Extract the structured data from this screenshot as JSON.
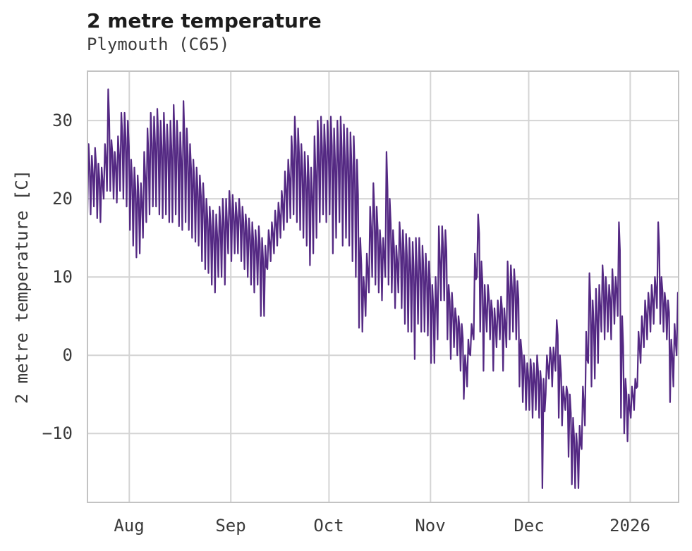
{
  "header": {
    "title": "2 metre temperature",
    "subtitle": "Plymouth (C65)"
  },
  "chart_data": {
    "type": "line",
    "title": "2 metre temperature",
    "subtitle": "Plymouth (C65)",
    "xlabel": "",
    "ylabel": "2 metre temperature [C]",
    "grid": true,
    "legend": "none",
    "series_name": "2 metre temperature",
    "x_unit": "day index across plotted range",
    "xlim": [
      0,
      181
    ],
    "ylim": [
      -18.9,
      36.4
    ],
    "x_ticks": [
      {
        "day": 13,
        "label": "Aug"
      },
      {
        "day": 44,
        "label": "Sep"
      },
      {
        "day": 74,
        "label": "Oct"
      },
      {
        "day": 105,
        "label": "Nov"
      },
      {
        "day": 135,
        "label": "Dec"
      },
      {
        "day": 166,
        "label": "2026"
      }
    ],
    "y_ticks": [
      {
        "value": 30,
        "label": "30"
      },
      {
        "value": 20,
        "label": "20"
      },
      {
        "value": 10,
        "label": "10"
      },
      {
        "value": 0,
        "label": "0"
      },
      {
        "value": -10,
        "label": "−10"
      }
    ],
    "daily_min": [
      17.5,
      18,
      19,
      17.5,
      17,
      20,
      21,
      21,
      20,
      19.5,
      21,
      20,
      19,
      16,
      14,
      12.5,
      13,
      15,
      17,
      18,
      19,
      19,
      18,
      17.5,
      18,
      17,
      17,
      18,
      16.5,
      16,
      17,
      16,
      15,
      14.5,
      14,
      12,
      11,
      10.5,
      9,
      8,
      10,
      10,
      9,
      13,
      12,
      13,
      13,
      12,
      11,
      10,
      9,
      8,
      9,
      5,
      5,
      11,
      12,
      13,
      14,
      15,
      16,
      17,
      17.5,
      18,
      17,
      16,
      15,
      14,
      11.5,
      13,
      15,
      17,
      18,
      17,
      18,
      13,
      15,
      17,
      14,
      15,
      14,
      12,
      10,
      3.5,
      3,
      5,
      8,
      10,
      9,
      8,
      7,
      10,
      9,
      8,
      6,
      8,
      6,
      4,
      3,
      3,
      -0.5,
      4,
      3,
      3,
      2.5,
      -1,
      -1,
      2,
      7,
      7,
      2,
      -0.5,
      1,
      0,
      -2,
      -5.6,
      -4,
      0,
      2,
      10,
      3,
      -2,
      3,
      2,
      -2,
      1,
      2,
      -2,
      1,
      2,
      3,
      2,
      -4,
      -6,
      -7,
      -7,
      -8,
      -7,
      -8,
      -17,
      -5,
      -3,
      -4,
      -2,
      -8,
      -9,
      -7,
      -13,
      -16.5,
      -17,
      -17,
      -12,
      -9,
      -1,
      -4,
      -3,
      -1,
      3,
      2,
      3,
      2,
      4,
      5,
      -8,
      -10,
      -11,
      -8,
      -7,
      -4,
      -1,
      1,
      2,
      3,
      4,
      6,
      4,
      3,
      2,
      -6,
      -4,
      0,
      -5.5
    ],
    "daily_max": [
      27,
      25.5,
      26.5,
      24.5,
      24,
      27,
      34,
      27.5,
      26,
      28,
      31,
      31,
      30,
      25,
      24,
      23,
      22,
      26,
      29,
      31,
      30.5,
      31.5,
      30,
      31,
      29.5,
      30,
      32,
      30,
      28.5,
      32.5,
      29,
      27,
      25,
      24,
      23,
      22,
      20,
      19,
      18.5,
      18,
      19,
      20,
      20,
      21,
      20.5,
      19.5,
      20,
      19,
      18,
      17.5,
      17,
      16,
      16.5,
      15,
      14,
      16,
      17,
      18.5,
      19.5,
      21,
      23.5,
      25,
      28,
      30.5,
      29,
      27,
      26,
      25.5,
      24,
      28,
      30,
      30.5,
      29.5,
      30,
      30.5,
      29,
      30,
      30.5,
      29.5,
      29,
      28.5,
      28,
      25,
      15,
      10,
      13,
      19,
      22,
      19,
      16,
      15,
      26,
      20,
      16,
      14,
      17,
      16,
      15.5,
      15,
      14.5,
      15,
      15,
      14,
      13,
      12,
      9,
      10,
      16.5,
      16.5,
      16,
      9,
      8,
      6,
      5,
      4,
      0,
      2,
      4,
      13,
      18,
      12,
      9,
      9,
      7,
      6,
      7,
      7.5,
      6,
      12,
      11.5,
      11,
      9.5,
      2,
      0,
      -1,
      -0.5,
      -1,
      0,
      -2,
      -3,
      0,
      1,
      1,
      4.5,
      0,
      -4,
      -4,
      -5,
      -8,
      -10,
      -9,
      -4,
      3,
      10.5,
      7,
      8.5,
      9,
      11.5,
      10,
      9,
      11,
      10,
      17,
      5,
      -3,
      -5,
      -4,
      -3,
      3,
      5,
      7,
      8,
      9,
      10,
      17,
      10,
      8,
      7,
      2,
      4,
      8,
      4.5
    ],
    "colors": {
      "line": "#542983",
      "grid": "#d4d4d4",
      "spine": "#c3c3c3",
      "title_text": "#1c1c1c",
      "tick_text": "#3a3a3a",
      "background": "#ffffff"
    }
  }
}
